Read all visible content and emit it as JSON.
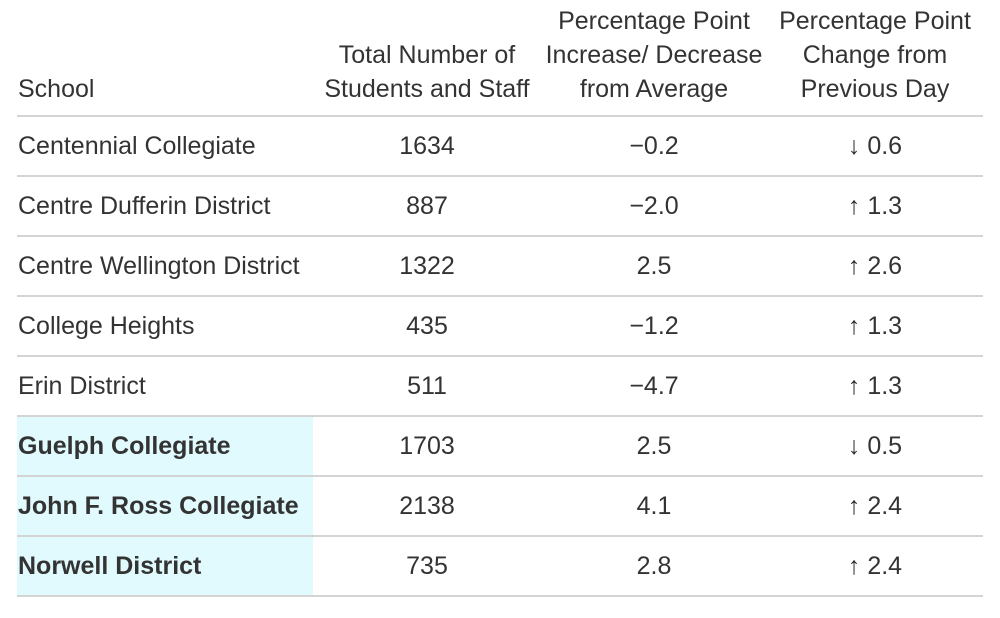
{
  "colors": {
    "text": "#333333",
    "divider": "#d4d4d4",
    "highlight": "#e1fafd",
    "background": "#ffffff"
  },
  "chart_data": {
    "type": "table",
    "columns": [
      {
        "label": "School"
      },
      {
        "label": "Total Number of\nStudents and Staff"
      },
      {
        "label": "Percentage Point\nIncrease/ Decrease\nfrom Average"
      },
      {
        "label": "Percentage Point\nChange from\nPrevious Day"
      }
    ],
    "rows": [
      {
        "school": "Centennial Collegiate",
        "total": "1634",
        "avg_diff": "−0.2",
        "day_change": "↓ 0.6",
        "day_change_direction": "down",
        "highlighted": false
      },
      {
        "school": "Centre Dufferin District",
        "total": "887",
        "avg_diff": "−2.0",
        "day_change": "↑ 1.3",
        "day_change_direction": "up",
        "highlighted": false
      },
      {
        "school": "Centre Wellington District",
        "total": "1322",
        "avg_diff": "2.5",
        "day_change": "↑ 2.6",
        "day_change_direction": "up",
        "highlighted": false
      },
      {
        "school": "College Heights",
        "total": "435",
        "avg_diff": "−1.2",
        "day_change": "↑ 1.3",
        "day_change_direction": "up",
        "highlighted": false
      },
      {
        "school": "Erin District",
        "total": "511",
        "avg_diff": "−4.7",
        "day_change": "↑ 1.3",
        "day_change_direction": "up",
        "highlighted": false
      },
      {
        "school": "Guelph Collegiate",
        "total": "1703",
        "avg_diff": "2.5",
        "day_change": "↓ 0.5",
        "day_change_direction": "down",
        "highlighted": true
      },
      {
        "school": "John F. Ross Collegiate",
        "total": "2138",
        "avg_diff": "4.1",
        "day_change": "↑ 2.4",
        "day_change_direction": "up",
        "highlighted": true
      },
      {
        "school": "Norwell District",
        "total": "735",
        "avg_diff": "2.8",
        "day_change": "↑ 2.4",
        "day_change_direction": "up",
        "highlighted": true
      }
    ],
    "highlighted_rows": [
      "Guelph Collegiate",
      "John F. Ross Collegiate",
      "Norwell District"
    ]
  }
}
